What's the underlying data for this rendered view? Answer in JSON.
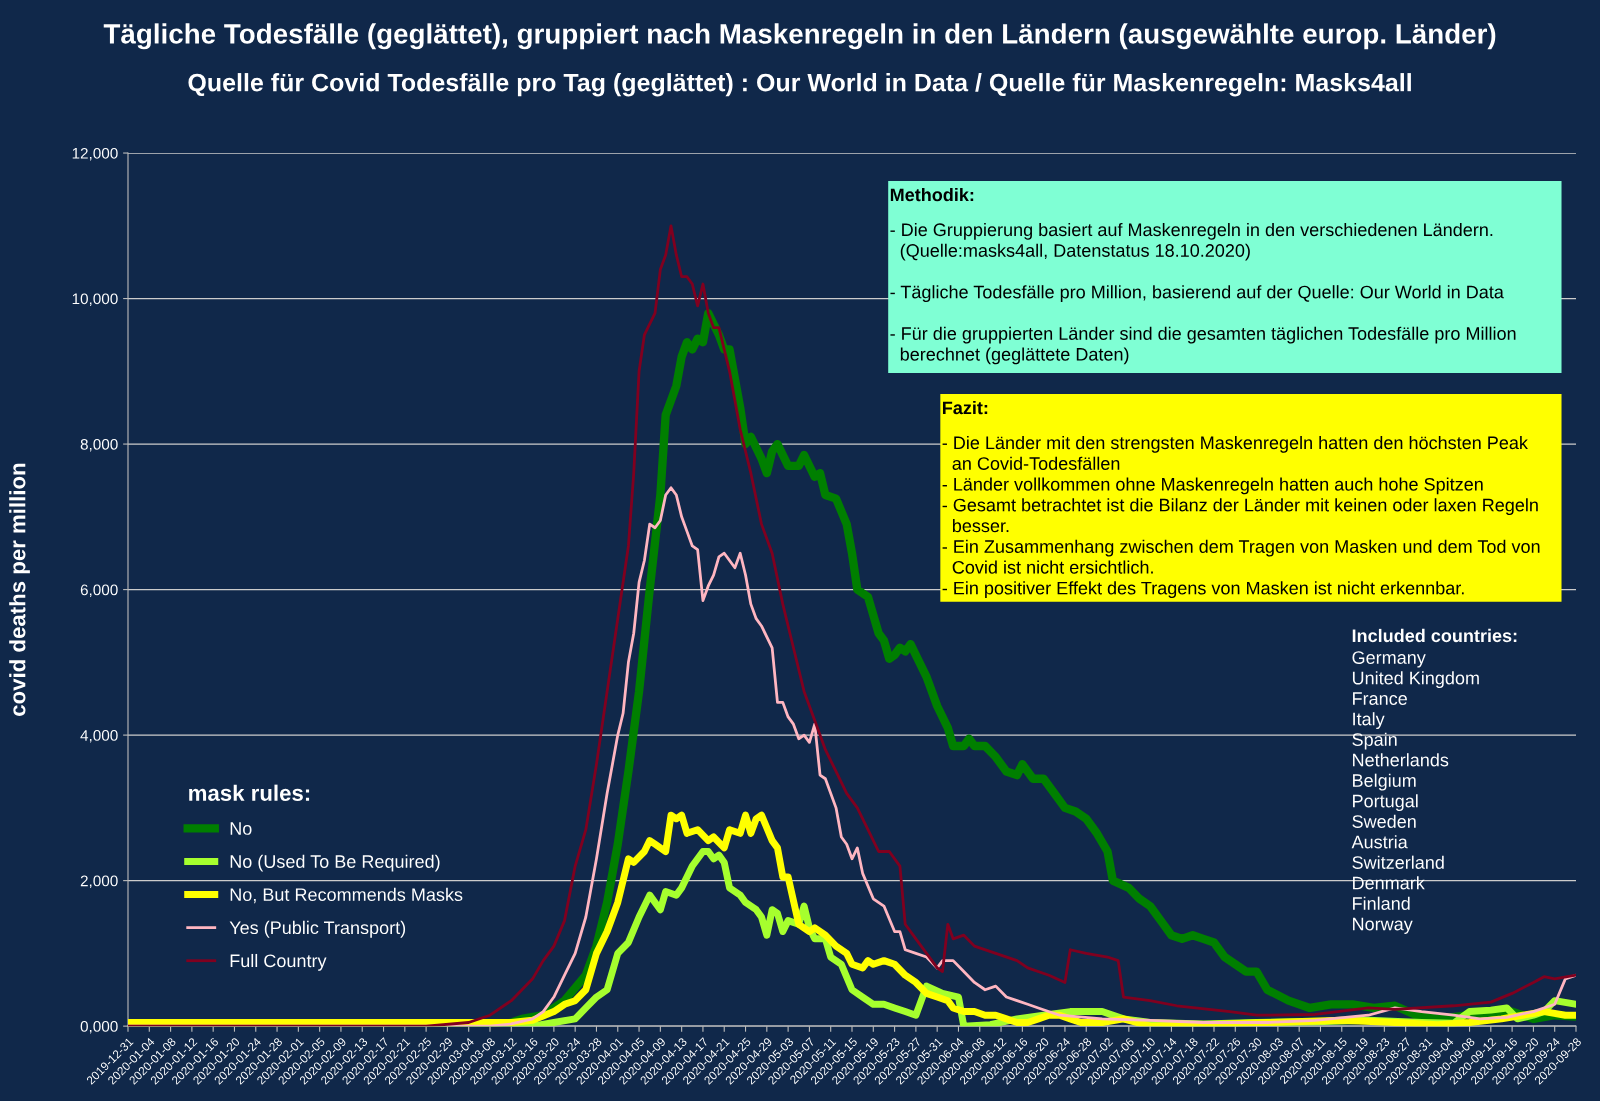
{
  "chart_data": {
    "type": "line",
    "title": "Tägliche Todesfälle (geglättet), gruppiert nach Maskenregeln in den Ländern (ausgewählte europ. Länder)",
    "subtitle": "Quelle für Covid Todesfälle pro Tag (geglättet) : Our World in Data / Quelle für Maskenregeln: Masks4all",
    "ylabel": "covid deaths per million",
    "legend_title": "mask rules:",
    "legend": "left",
    "grid": "y",
    "xlim": [
      "2019-12-31",
      "2020-09-28"
    ],
    "xticks": [
      "2019-12-31",
      "2020-01-04",
      "2020-01-08",
      "2020-01-12",
      "2020-01-16",
      "2020-01-20",
      "2020-01-24",
      "2020-01-28",
      "2020-02-01",
      "2020-02-05",
      "2020-02-09",
      "2020-02-13",
      "2020-02-17",
      "2020-02-21",
      "2020-02-25",
      "2020-02-29",
      "2020-03-04",
      "2020-03-08",
      "2020-03-12",
      "2020-03-16",
      "2020-03-20",
      "2020-03-24",
      "2020-03-28",
      "2020-04-01",
      "2020-04-05",
      "2020-04-09",
      "2020-04-13",
      "2020-04-17",
      "2020-04-21",
      "2020-04-25",
      "2020-04-29",
      "2020-05-03",
      "2020-05-07",
      "2020-05-11",
      "2020-05-15",
      "2020-05-19",
      "2020-05-23",
      "2020-05-27",
      "2020-05-31",
      "2020-06-04",
      "2020-06-08",
      "2020-06-12",
      "2020-06-16",
      "2020-06-20",
      "2020-06-24",
      "2020-06-28",
      "2020-07-02",
      "2020-07-06",
      "2020-07-10",
      "2020-07-14",
      "2020-07-18",
      "2020-07-22",
      "2020-07-26",
      "2020-07-30",
      "2020-08-03",
      "2020-08-07",
      "2020-08-11",
      "2020-08-15",
      "2020-08-19",
      "2020-08-23",
      "2020-08-27",
      "2020-08-31",
      "2020-09-04",
      "2020-09-08",
      "2020-09-12",
      "2020-09-16",
      "2020-09-20",
      "2020-09-24",
      "2020-09-28"
    ],
    "ylim": [
      0,
      12000
    ],
    "yticks": [
      {
        "value": 0,
        "label": "0,000"
      },
      {
        "value": 2000,
        "label": "2,000"
      },
      {
        "value": 4000,
        "label": "4,000"
      },
      {
        "value": 6000,
        "label": "6,000"
      },
      {
        "value": 8000,
        "label": "8,000"
      },
      {
        "value": 10000,
        "label": "10,000"
      },
      {
        "value": 12000,
        "label": "12,000"
      }
    ],
    "annotations": [
      "Methodik:",
      "- Die Gruppierung basiert auf Maskenregeln in den verschiedenen Ländern.\n  (Quelle:masks4all, Datenstatus 18.10.2020)\n\n- Tägliche Todesfälle pro Million, basierend auf der Quelle: Our World in Data\n\n- Für die gruppierten Länder sind die gesamten täglichen Todesfälle pro Million\n  berechnet (geglättete Daten)",
      "Fazit:",
      "- Die Länder mit den strengsten Maskenregeln hatten den höchsten Peak\n  an Covid-Todesfällen\n- Länder vollkommen ohne Maskenregeln hatten auch hohe Spitzen\n- Gesamt betrachtet ist die Bilanz der Länder mit keinen oder laxen Regeln\n  besser.\n- Ein Zusammenhang zwischen dem Tragen von Masken und dem Tod von\n  Covid ist nicht ersichtlich.\n- Ein positiver Effekt des Tragens von Masken ist nicht erkennbar.",
      "Included countries:",
      "Germany\nUnited Kingdom\nFrance\nItaly\nSpain\nNetherlands\nBelgium\nPortugal\nSweden\nAustria\nSwitzerland\nDenmark\nFinland\nNorway"
    ],
    "series": [
      {
        "name": "No",
        "color": "#007f00",
        "x": [
          "2019-12-31",
          "2020-03-10",
          "2020-03-14",
          "2020-03-18",
          "2020-03-22",
          "2020-03-26",
          "2020-03-28",
          "2020-03-30",
          "2020-04-01",
          "2020-04-03",
          "2020-04-05",
          "2020-04-07",
          "2020-04-09",
          "2020-04-10",
          "2020-04-12",
          "2020-04-13",
          "2020-04-14",
          "2020-04-15",
          "2020-04-16",
          "2020-04-17",
          "2020-04-18",
          "2020-04-20",
          "2020-04-21",
          "2020-04-22",
          "2020-04-24",
          "2020-04-25",
          "2020-04-26",
          "2020-04-28",
          "2020-04-29",
          "2020-04-30",
          "2020-05-01",
          "2020-05-03",
          "2020-05-05",
          "2020-05-06",
          "2020-05-08",
          "2020-05-09",
          "2020-05-10",
          "2020-05-12",
          "2020-05-14",
          "2020-05-15",
          "2020-05-16",
          "2020-05-18",
          "2020-05-20",
          "2020-05-21",
          "2020-05-22",
          "2020-05-23",
          "2020-05-24",
          "2020-05-25",
          "2020-05-26",
          "2020-05-27",
          "2020-05-29",
          "2020-05-31",
          "2020-06-02",
          "2020-06-03",
          "2020-06-05",
          "2020-06-06",
          "2020-06-07",
          "2020-06-09",
          "2020-06-11",
          "2020-06-13",
          "2020-06-15",
          "2020-06-16",
          "2020-06-18",
          "2020-06-20",
          "2020-06-22",
          "2020-06-24",
          "2020-06-26",
          "2020-06-28",
          "2020-06-30",
          "2020-07-02",
          "2020-07-03",
          "2020-07-06",
          "2020-07-08",
          "2020-07-10",
          "2020-07-12",
          "2020-07-14",
          "2020-07-16",
          "2020-07-18",
          "2020-07-20",
          "2020-07-22",
          "2020-07-24",
          "2020-07-26",
          "2020-07-28",
          "2020-07-30",
          "2020-08-01",
          "2020-08-05",
          "2020-08-09",
          "2020-08-13",
          "2020-08-17",
          "2020-08-21",
          "2020-08-25",
          "2020-08-29",
          "2020-09-02",
          "2020-09-08",
          "2020-09-12",
          "2020-09-16",
          "2020-09-20",
          "2020-09-24",
          "2020-09-28"
        ],
        "values": [
          0,
          0,
          100,
          150,
          350,
          700,
          1100,
          1700,
          2500,
          3500,
          4600,
          6000,
          7300,
          8400,
          8800,
          9200,
          9400,
          9300,
          9450,
          9400,
          9800,
          9500,
          9300,
          9300,
          8500,
          8000,
          8100,
          7800,
          7600,
          7900,
          8000,
          7700,
          7700,
          7850,
          7550,
          7600,
          7300,
          7250,
          6900,
          6500,
          6000,
          5900,
          5400,
          5300,
          5050,
          5100,
          5200,
          5150,
          5250,
          5100,
          4800,
          4400,
          4100,
          3850,
          3850,
          3950,
          3850,
          3850,
          3700,
          3500,
          3450,
          3600,
          3400,
          3400,
          3200,
          3000,
          2950,
          2850,
          2650,
          2400,
          2000,
          1900,
          1750,
          1650,
          1450,
          1250,
          1200,
          1250,
          1200,
          1150,
          950,
          850,
          750,
          750,
          500,
          350,
          250,
          300,
          300,
          250,
          280,
          150,
          100,
          150,
          150,
          200,
          100,
          150,
          130
        ]
      },
      {
        "name": "No (Used To Be Required)",
        "color": "#a6ff2e",
        "x": [
          "2019-12-31",
          "2020-03-16",
          "2020-03-20",
          "2020-03-24",
          "2020-03-26",
          "2020-03-28",
          "2020-03-30",
          "2020-04-01",
          "2020-04-03",
          "2020-04-05",
          "2020-04-07",
          "2020-04-09",
          "2020-04-10",
          "2020-04-12",
          "2020-04-13",
          "2020-04-15",
          "2020-04-17",
          "2020-04-18",
          "2020-04-19",
          "2020-04-20",
          "2020-04-21",
          "2020-04-22",
          "2020-04-24",
          "2020-04-25",
          "2020-04-27",
          "2020-04-28",
          "2020-04-29",
          "2020-04-30",
          "2020-05-01",
          "2020-05-02",
          "2020-05-03",
          "2020-05-05",
          "2020-05-06",
          "2020-05-07",
          "2020-05-08",
          "2020-05-10",
          "2020-05-11",
          "2020-05-13",
          "2020-05-15",
          "2020-05-17",
          "2020-05-19",
          "2020-05-21",
          "2020-05-23",
          "2020-05-25",
          "2020-05-27",
          "2020-05-29",
          "2020-06-01",
          "2020-06-04",
          "2020-06-05",
          "2020-06-10",
          "2020-06-15",
          "2020-06-20",
          "2020-06-25",
          "2020-07-01",
          "2020-07-05",
          "2020-07-10",
          "2020-07-20",
          "2020-07-30",
          "2020-08-10",
          "2020-08-20",
          "2020-08-30",
          "2020-09-05",
          "2020-09-08",
          "2020-09-12",
          "2020-09-15",
          "2020-09-17",
          "2020-09-20",
          "2020-09-22",
          "2020-09-24",
          "2020-09-28"
        ],
        "values": [
          0,
          0,
          50,
          100,
          250,
          400,
          500,
          1000,
          1150,
          1500,
          1800,
          1600,
          1850,
          1800,
          1900,
          2200,
          2400,
          2400,
          2300,
          2350,
          2250,
          1900,
          1800,
          1700,
          1600,
          1500,
          1250,
          1600,
          1550,
          1300,
          1450,
          1400,
          1650,
          1350,
          1200,
          1200,
          950,
          850,
          500,
          400,
          300,
          300,
          250,
          200,
          150,
          550,
          450,
          400,
          0,
          20,
          100,
          150,
          200,
          200,
          100,
          50,
          30,
          50,
          60,
          80,
          50,
          40,
          200,
          220,
          250,
          100,
          150,
          200,
          350,
          300
        ]
      },
      {
        "name": "No, But Recommends Masks",
        "color": "#ffff00",
        "x": [
          "2019-12-31",
          "2020-03-12",
          "2020-03-16",
          "2020-03-20",
          "2020-03-22",
          "2020-03-24",
          "2020-03-26",
          "2020-03-28",
          "2020-03-30",
          "2020-04-01",
          "2020-04-02",
          "2020-04-03",
          "2020-04-04",
          "2020-04-06",
          "2020-04-07",
          "2020-04-08",
          "2020-04-10",
          "2020-04-11",
          "2020-04-12",
          "2020-04-13",
          "2020-04-14",
          "2020-04-16",
          "2020-04-18",
          "2020-04-19",
          "2020-04-21",
          "2020-04-22",
          "2020-04-24",
          "2020-04-25",
          "2020-04-26",
          "2020-04-27",
          "2020-04-28",
          "2020-04-30",
          "2020-05-01",
          "2020-05-02",
          "2020-05-03",
          "2020-05-05",
          "2020-05-07",
          "2020-05-08",
          "2020-05-10",
          "2020-05-12",
          "2020-05-14",
          "2020-05-15",
          "2020-05-17",
          "2020-05-18",
          "2020-05-19",
          "2020-05-21",
          "2020-05-23",
          "2020-05-25",
          "2020-05-27",
          "2020-05-29",
          "2020-05-31",
          "2020-06-02",
          "2020-06-03",
          "2020-06-05",
          "2020-06-07",
          "2020-06-09",
          "2020-06-11",
          "2020-06-13",
          "2020-06-15",
          "2020-06-17",
          "2020-06-19",
          "2020-06-21",
          "2020-06-23",
          "2020-06-25",
          "2020-06-27",
          "2020-07-01",
          "2020-07-05",
          "2020-07-10",
          "2020-07-20",
          "2020-08-01",
          "2020-08-15",
          "2020-08-25",
          "2020-09-02",
          "2020-09-08",
          "2020-09-14",
          "2020-09-18",
          "2020-09-22",
          "2020-09-26",
          "2020-09-28"
        ],
        "values": [
          50,
          50,
          80,
          200,
          300,
          350,
          500,
          1000,
          1300,
          1700,
          2000,
          2300,
          2250,
          2400,
          2550,
          2500,
          2400,
          2900,
          2850,
          2900,
          2650,
          2700,
          2550,
          2600,
          2450,
          2700,
          2650,
          2900,
          2650,
          2850,
          2900,
          2550,
          2450,
          2050,
          2050,
          1400,
          1300,
          1350,
          1250,
          1100,
          1000,
          850,
          800,
          900,
          850,
          900,
          850,
          700,
          600,
          450,
          400,
          350,
          250,
          200,
          200,
          150,
          150,
          100,
          50,
          50,
          100,
          150,
          150,
          100,
          50,
          50,
          100,
          0,
          20,
          50,
          80,
          50,
          20,
          50,
          100,
          150,
          200,
          150,
          150
        ]
      },
      {
        "name": "Yes (Public Transport)",
        "color": "#ffb6c1",
        "x": [
          "2019-12-31",
          "2020-03-08",
          "2020-03-12",
          "2020-03-16",
          "2020-03-18",
          "2020-03-20",
          "2020-03-22",
          "2020-03-24",
          "2020-03-26",
          "2020-03-28",
          "2020-03-30",
          "2020-04-01",
          "2020-04-02",
          "2020-04-03",
          "2020-04-04",
          "2020-04-05",
          "2020-04-06",
          "2020-04-07",
          "2020-04-08",
          "2020-04-09",
          "2020-04-10",
          "2020-04-11",
          "2020-04-12",
          "2020-04-13",
          "2020-04-14",
          "2020-04-15",
          "2020-04-16",
          "2020-04-17",
          "2020-04-18",
          "2020-04-19",
          "2020-04-20",
          "2020-04-21",
          "2020-04-22",
          "2020-04-23",
          "2020-04-24",
          "2020-04-25",
          "2020-04-26",
          "2020-04-27",
          "2020-04-28",
          "2020-04-30",
          "2020-05-01",
          "2020-05-02",
          "2020-05-03",
          "2020-05-04",
          "2020-05-05",
          "2020-05-06",
          "2020-05-07",
          "2020-05-08",
          "2020-05-09",
          "2020-05-10",
          "2020-05-12",
          "2020-05-13",
          "2020-05-14",
          "2020-05-15",
          "2020-05-16",
          "2020-05-17",
          "2020-05-19",
          "2020-05-21",
          "2020-05-23",
          "2020-05-24",
          "2020-05-25",
          "2020-05-27",
          "2020-05-29",
          "2020-05-31",
          "2020-06-01",
          "2020-06-03",
          "2020-06-05",
          "2020-06-07",
          "2020-06-09",
          "2020-06-11",
          "2020-06-13",
          "2020-06-15",
          "2020-06-17",
          "2020-06-19",
          "2020-06-23",
          "2020-07-01",
          "2020-07-10",
          "2020-07-20",
          "2020-08-01",
          "2020-08-10",
          "2020-08-20",
          "2020-08-25",
          "2020-08-30",
          "2020-09-05",
          "2020-09-10",
          "2020-09-15",
          "2020-09-20",
          "2020-09-24",
          "2020-09-26",
          "2020-09-28"
        ],
        "values": [
          0,
          0,
          30,
          100,
          200,
          400,
          700,
          1000,
          1500,
          2300,
          3200,
          4000,
          4300,
          5000,
          5400,
          6100,
          6400,
          6900,
          6850,
          6950,
          7300,
          7400,
          7300,
          7000,
          6800,
          6600,
          6550,
          5850,
          6050,
          6200,
          6450,
          6500,
          6400,
          6300,
          6500,
          6200,
          5800,
          5600,
          5500,
          5200,
          4450,
          4450,
          4250,
          4150,
          3950,
          4000,
          3900,
          4150,
          3450,
          3400,
          3000,
          2600,
          2500,
          2300,
          2450,
          2100,
          1750,
          1650,
          1300,
          1300,
          1050,
          1000,
          950,
          800,
          900,
          900,
          750,
          600,
          500,
          550,
          400,
          350,
          300,
          250,
          150,
          100,
          80,
          50,
          50,
          80,
          150,
          250,
          200,
          150,
          100,
          120,
          200,
          300,
          650,
          700
        ]
      },
      {
        "name": "Full Country",
        "color": "#80001f",
        "x": [
          "2019-12-31",
          "2020-02-25",
          "2020-03-04",
          "2020-03-08",
          "2020-03-12",
          "2020-03-16",
          "2020-03-18",
          "2020-03-20",
          "2020-03-22",
          "2020-03-24",
          "2020-03-26",
          "2020-03-28",
          "2020-03-30",
          "2020-04-01",
          "2020-04-03",
          "2020-04-04",
          "2020-04-05",
          "2020-04-06",
          "2020-04-08",
          "2020-04-09",
          "2020-04-10",
          "2020-04-11",
          "2020-04-12",
          "2020-04-13",
          "2020-04-14",
          "2020-04-15",
          "2020-04-16",
          "2020-04-17",
          "2020-04-18",
          "2020-04-19",
          "2020-04-20",
          "2020-04-22",
          "2020-04-24",
          "2020-04-26",
          "2020-04-28",
          "2020-04-30",
          "2020-05-02",
          "2020-05-04",
          "2020-05-06",
          "2020-05-08",
          "2020-05-10",
          "2020-05-12",
          "2020-05-14",
          "2020-05-16",
          "2020-05-18",
          "2020-05-20",
          "2020-05-22",
          "2020-05-24",
          "2020-05-25",
          "2020-05-27",
          "2020-05-29",
          "2020-05-31",
          "2020-06-01",
          "2020-06-02",
          "2020-06-03",
          "2020-06-05",
          "2020-06-07",
          "2020-06-11",
          "2020-06-15",
          "2020-06-17",
          "2020-06-21",
          "2020-06-24",
          "2020-06-25",
          "2020-06-28",
          "2020-07-02",
          "2020-07-04",
          "2020-07-05",
          "2020-07-10",
          "2020-07-15",
          "2020-07-25",
          "2020-07-30",
          "2020-08-10",
          "2020-08-20",
          "2020-08-25",
          "2020-09-05",
          "2020-09-12",
          "2020-09-16",
          "2020-09-20",
          "2020-09-22",
          "2020-09-24",
          "2020-09-28"
        ],
        "values": [
          0,
          0,
          50,
          150,
          350,
          650,
          900,
          1100,
          1450,
          2200,
          2700,
          3600,
          4600,
          5600,
          6600,
          7600,
          9000,
          9500,
          9800,
          10400,
          10600,
          11000,
          10600,
          10300,
          10300,
          10200,
          9900,
          10200,
          9800,
          9600,
          9600,
          9000,
          8200,
          7600,
          6900,
          6500,
          5800,
          5200,
          4600,
          4200,
          3800,
          3500,
          3200,
          3000,
          2700,
          2400,
          2400,
          2200,
          1400,
          1200,
          1000,
          800,
          750,
          1400,
          1200,
          1250,
          1100,
          1000,
          900,
          800,
          700,
          600,
          1050,
          1000,
          950,
          900,
          400,
          350,
          280,
          200,
          150,
          160,
          250,
          230,
          280,
          330,
          450,
          600,
          680,
          650,
          700
        ]
      }
    ]
  }
}
